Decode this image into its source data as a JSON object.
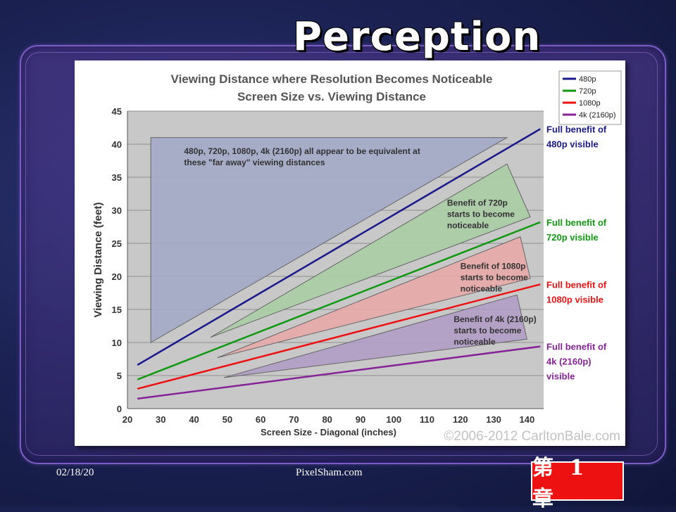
{
  "slide": {
    "title": "Perception",
    "footer_date": "02/18/20",
    "footer_site": "PixelSham.com",
    "chapter_badge": "第 1 章"
  },
  "chart_data": {
    "type": "line",
    "title": "Viewing Distance where Resolution Becomes Noticeable",
    "subtitle": "Screen Size vs. Viewing Distance",
    "xlabel": "Screen Size - Diagonal (inches)",
    "ylabel": "Viewing Distance (feet)",
    "xlim": [
      20,
      145
    ],
    "ylim": [
      0,
      45
    ],
    "xticks": [
      20,
      30,
      40,
      50,
      60,
      70,
      80,
      90,
      100,
      110,
      120,
      130,
      140
    ],
    "yticks": [
      0,
      5,
      10,
      15,
      20,
      25,
      30,
      35,
      40,
      45
    ],
    "grid": true,
    "legend_position": "top-right",
    "copyright": "©2006-2012 CarltonBale.com",
    "series": [
      {
        "name": "480p",
        "color": "#1a1a8c",
        "x": [
          23,
          144
        ],
        "y": [
          6.6,
          42.3
        ],
        "end_label": [
          "Full benefit of",
          "480p visible"
        ]
      },
      {
        "name": "720p",
        "color": "#119911",
        "x": [
          23,
          144
        ],
        "y": [
          4.4,
          28.2
        ],
        "end_label": [
          "Full benefit of",
          "720p visible"
        ]
      },
      {
        "name": "1080p",
        "color": "#ee1111",
        "x": [
          23,
          144
        ],
        "y": [
          3.0,
          18.8
        ],
        "end_label": [
          "Full benefit of",
          "1080p visible"
        ]
      },
      {
        "name": "4k (2160p)",
        "color": "#882299",
        "x": [
          23,
          144
        ],
        "y": [
          1.5,
          9.4
        ],
        "end_label": [
          "Full benefit of",
          "4k (2160p)",
          "visible"
        ]
      }
    ],
    "regions": [
      {
        "color": "#a3a8c6",
        "points": [
          [
            27,
            10
          ],
          [
            27,
            41
          ],
          [
            134,
            41
          ]
        ],
        "label": [
          "480p, 720p, 1080p, 4k (2160p) all appear to be equivalent at",
          "these \"far away\" viewing distances"
        ],
        "label_at": [
          37,
          38.5
        ]
      },
      {
        "color": "#a9cda4",
        "points": [
          [
            45,
            10.8
          ],
          [
            134,
            37
          ],
          [
            141,
            29
          ]
        ],
        "label": [
          "Benefit of 720p",
          "starts to become",
          "noticeable"
        ],
        "label_at": [
          116,
          30.7
        ]
      },
      {
        "color": "#e8a9a9",
        "points": [
          [
            47,
            7.7
          ],
          [
            138,
            26
          ],
          [
            141,
            19.7
          ]
        ],
        "label": [
          "Benefit of 1080p",
          "starts to become",
          "noticeable"
        ],
        "label_at": [
          120,
          21.1
        ]
      },
      {
        "color": "#b19cc5",
        "points": [
          [
            49,
            4.7
          ],
          [
            137,
            17.2
          ],
          [
            140,
            10.5
          ]
        ],
        "label": [
          "Benefit of 4k (2160p)",
          "starts to become",
          "noticeable"
        ],
        "label_at": [
          118,
          13.1
        ]
      }
    ]
  }
}
